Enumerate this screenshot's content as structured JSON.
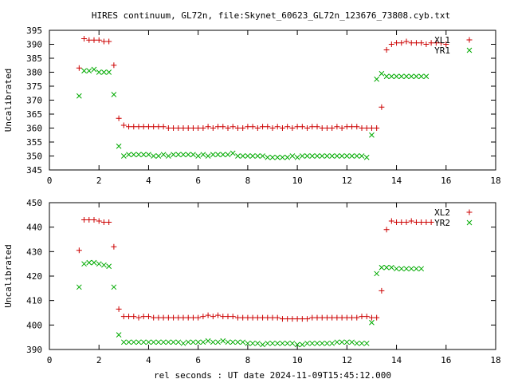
{
  "title": "HIRES continuum, GL72n, file:Skynet_60623_GL72n_123676_73808.cyb.txt",
  "colors": {
    "plus": "#cc0000",
    "cross": "#00aa00",
    "axis": "#000000"
  },
  "chart_data": [
    {
      "type": "scatter",
      "ylabel": "Uncalibrated",
      "xlabel": "",
      "xlim": [
        0,
        18
      ],
      "ylim": [
        345,
        395
      ],
      "xticks": [
        0,
        2,
        4,
        6,
        8,
        10,
        12,
        14,
        16,
        18
      ],
      "yticks": [
        345,
        350,
        355,
        360,
        365,
        370,
        375,
        380,
        385,
        390,
        395
      ],
      "legend_position": "top-right",
      "series": [
        {
          "name": "XL1",
          "marker": "plus",
          "x": [
            1.2,
            1.4,
            1.6,
            1.8,
            2.0,
            2.2,
            2.4,
            2.6,
            2.8,
            3.0,
            3.2,
            3.4,
            3.6,
            3.8,
            4.0,
            4.2,
            4.4,
            4.6,
            4.8,
            5.0,
            5.2,
            5.4,
            5.6,
            5.8,
            6.0,
            6.2,
            6.4,
            6.6,
            6.8,
            7.0,
            7.2,
            7.4,
            7.6,
            7.8,
            8.0,
            8.2,
            8.4,
            8.6,
            8.8,
            9.0,
            9.2,
            9.4,
            9.6,
            9.8,
            10.0,
            10.2,
            10.4,
            10.6,
            10.8,
            11.0,
            11.2,
            11.4,
            11.6,
            11.8,
            12.0,
            12.2,
            12.4,
            12.6,
            12.8,
            13.0,
            13.2,
            13.4,
            13.6,
            13.8,
            14.0,
            14.2,
            14.4,
            14.6,
            14.8,
            15.0,
            15.2,
            15.4,
            15.6,
            15.8,
            16.0
          ],
          "y": [
            381.5,
            392,
            391.5,
            391.5,
            391.5,
            391,
            391,
            382.5,
            363.5,
            361,
            360.5,
            360.5,
            360.5,
            360.5,
            360.5,
            360.5,
            360.5,
            360.5,
            360,
            360,
            360,
            360,
            360,
            360,
            360,
            360,
            360.5,
            360,
            360.5,
            360.5,
            360,
            360.5,
            360,
            360,
            360.5,
            360.5,
            360,
            360.5,
            360.5,
            360,
            360.5,
            360,
            360.5,
            360,
            360.5,
            360.5,
            360,
            360.5,
            360.5,
            360,
            360,
            360,
            360.5,
            360,
            360.5,
            360.5,
            360.5,
            360,
            360,
            360,
            360,
            367.5,
            388,
            390,
            390.5,
            390.5,
            391,
            390.5,
            390.5,
            390.5,
            390,
            390.5,
            390.5,
            390.5,
            390
          ],
          "xcoords_note": ""
        },
        {
          "name": "YR1",
          "marker": "cross",
          "x": [
            1.2,
            1.4,
            1.6,
            1.8,
            2.0,
            2.2,
            2.4,
            2.6,
            2.8,
            3.0,
            3.2,
            3.4,
            3.6,
            3.8,
            4.0,
            4.2,
            4.4,
            4.6,
            4.8,
            5.0,
            5.2,
            5.4,
            5.6,
            5.8,
            6.0,
            6.2,
            6.4,
            6.6,
            6.8,
            7.0,
            7.2,
            7.4,
            7.6,
            7.8,
            8.0,
            8.2,
            8.4,
            8.6,
            8.8,
            9.0,
            9.2,
            9.4,
            9.6,
            9.8,
            10.0,
            10.2,
            10.4,
            10.6,
            10.8,
            11.0,
            11.2,
            11.4,
            11.6,
            11.8,
            12.0,
            12.2,
            12.4,
            12.6,
            12.8,
            13.0,
            13.2,
            13.4,
            13.6,
            13.8,
            14.0,
            14.2,
            14.4,
            14.6,
            14.8,
            15.0,
            15.2
          ],
          "y": [
            371.5,
            380.5,
            380.5,
            381,
            380,
            380,
            380,
            372,
            353.5,
            350,
            350.5,
            350.5,
            350.5,
            350.5,
            350.5,
            350,
            350,
            350.5,
            350,
            350.5,
            350.5,
            350.5,
            350.5,
            350.5,
            350,
            350.5,
            350,
            350.5,
            350.5,
            350.5,
            350.5,
            351,
            350,
            350,
            350,
            350,
            350,
            350,
            349.5,
            349.5,
            349.5,
            349.5,
            349.5,
            350,
            349.5,
            350,
            350,
            350,
            350,
            350,
            350,
            350,
            350,
            350,
            350,
            350,
            350,
            350,
            349.5,
            357.5,
            377.5,
            379.5,
            378.5,
            378.5,
            378.5,
            378.5,
            378.5,
            378.5,
            378.5,
            378.5,
            378.5
          ]
        }
      ]
    },
    {
      "type": "scatter",
      "ylabel": "Uncalibrated",
      "xlabel": "rel seconds : UT date 2024-11-09T15:45:12.000",
      "xlim": [
        0,
        18
      ],
      "ylim": [
        390,
        450
      ],
      "xticks": [
        0,
        2,
        4,
        6,
        8,
        10,
        12,
        14,
        16,
        18
      ],
      "yticks": [
        390,
        400,
        410,
        420,
        430,
        440,
        450
      ],
      "legend_position": "top-right",
      "series": [
        {
          "name": "XL2",
          "marker": "plus",
          "x": [
            1.2,
            1.4,
            1.6,
            1.8,
            2.0,
            2.2,
            2.4,
            2.6,
            2.8,
            3.0,
            3.2,
            3.4,
            3.6,
            3.8,
            4.0,
            4.2,
            4.4,
            4.6,
            4.8,
            5.0,
            5.2,
            5.4,
            5.6,
            5.8,
            6.0,
            6.2,
            6.4,
            6.6,
            6.8,
            7.0,
            7.2,
            7.4,
            7.6,
            7.8,
            8.0,
            8.2,
            8.4,
            8.6,
            8.8,
            9.0,
            9.2,
            9.4,
            9.6,
            9.8,
            10.0,
            10.2,
            10.4,
            10.6,
            10.8,
            11.0,
            11.2,
            11.4,
            11.6,
            11.8,
            12.0,
            12.2,
            12.4,
            12.6,
            12.8,
            13.0,
            13.2,
            13.4,
            13.6,
            13.8,
            14.0,
            14.2,
            14.4,
            14.6,
            14.8,
            15.0,
            15.2,
            15.4
          ],
          "y": [
            430.5,
            443,
            443,
            443,
            442.5,
            442,
            442,
            432,
            406.5,
            403.5,
            403.5,
            403.5,
            403,
            403.5,
            403.5,
            403,
            403,
            403,
            403,
            403,
            403,
            403,
            403,
            403,
            403,
            403.5,
            404,
            403.5,
            404,
            403.5,
            403.5,
            403.5,
            403,
            403,
            403,
            403,
            403,
            403,
            403,
            403,
            403,
            402.5,
            402.5,
            402.5,
            402.5,
            402.5,
            402.5,
            403,
            403,
            403,
            403,
            403,
            403,
            403,
            403,
            403,
            403,
            403.5,
            403.5,
            403,
            403,
            414,
            439,
            442.5,
            442,
            442,
            442,
            442.5,
            442,
            442,
            442,
            442
          ]
        },
        {
          "name": "YR2",
          "marker": "cross",
          "x": [
            1.2,
            1.4,
            1.6,
            1.8,
            2.0,
            2.2,
            2.4,
            2.6,
            2.8,
            3.0,
            3.2,
            3.4,
            3.6,
            3.8,
            4.0,
            4.2,
            4.4,
            4.6,
            4.8,
            5.0,
            5.2,
            5.4,
            5.6,
            5.8,
            6.0,
            6.2,
            6.4,
            6.6,
            6.8,
            7.0,
            7.2,
            7.4,
            7.6,
            7.8,
            8.0,
            8.2,
            8.4,
            8.6,
            8.8,
            9.0,
            9.2,
            9.4,
            9.6,
            9.8,
            10.0,
            10.2,
            10.4,
            10.6,
            10.8,
            11.0,
            11.2,
            11.4,
            11.6,
            11.8,
            12.0,
            12.2,
            12.4,
            12.6,
            12.8,
            13.0,
            13.2,
            13.4,
            13.6,
            13.8,
            14.0,
            14.2,
            14.4,
            14.6,
            14.8,
            15.0
          ],
          "y": [
            415.5,
            425,
            425.5,
            425.5,
            425,
            424.5,
            424,
            415.5,
            396,
            393,
            393,
            393,
            393,
            393,
            393,
            393,
            393,
            393,
            393,
            393,
            393,
            392.5,
            393,
            393,
            393,
            393,
            393.5,
            393,
            393,
            393.5,
            393,
            393,
            393,
            393,
            392.5,
            392.5,
            392.5,
            392,
            392.5,
            392.5,
            392.5,
            392.5,
            392.5,
            392.5,
            392,
            392,
            392.5,
            392.5,
            392.5,
            392.5,
            392.5,
            392.5,
            393,
            393,
            393,
            393,
            392.5,
            392.5,
            392.5,
            401,
            421,
            423.5,
            423.5,
            423.5,
            423,
            423,
            423,
            423,
            423,
            423
          ]
        }
      ]
    }
  ]
}
